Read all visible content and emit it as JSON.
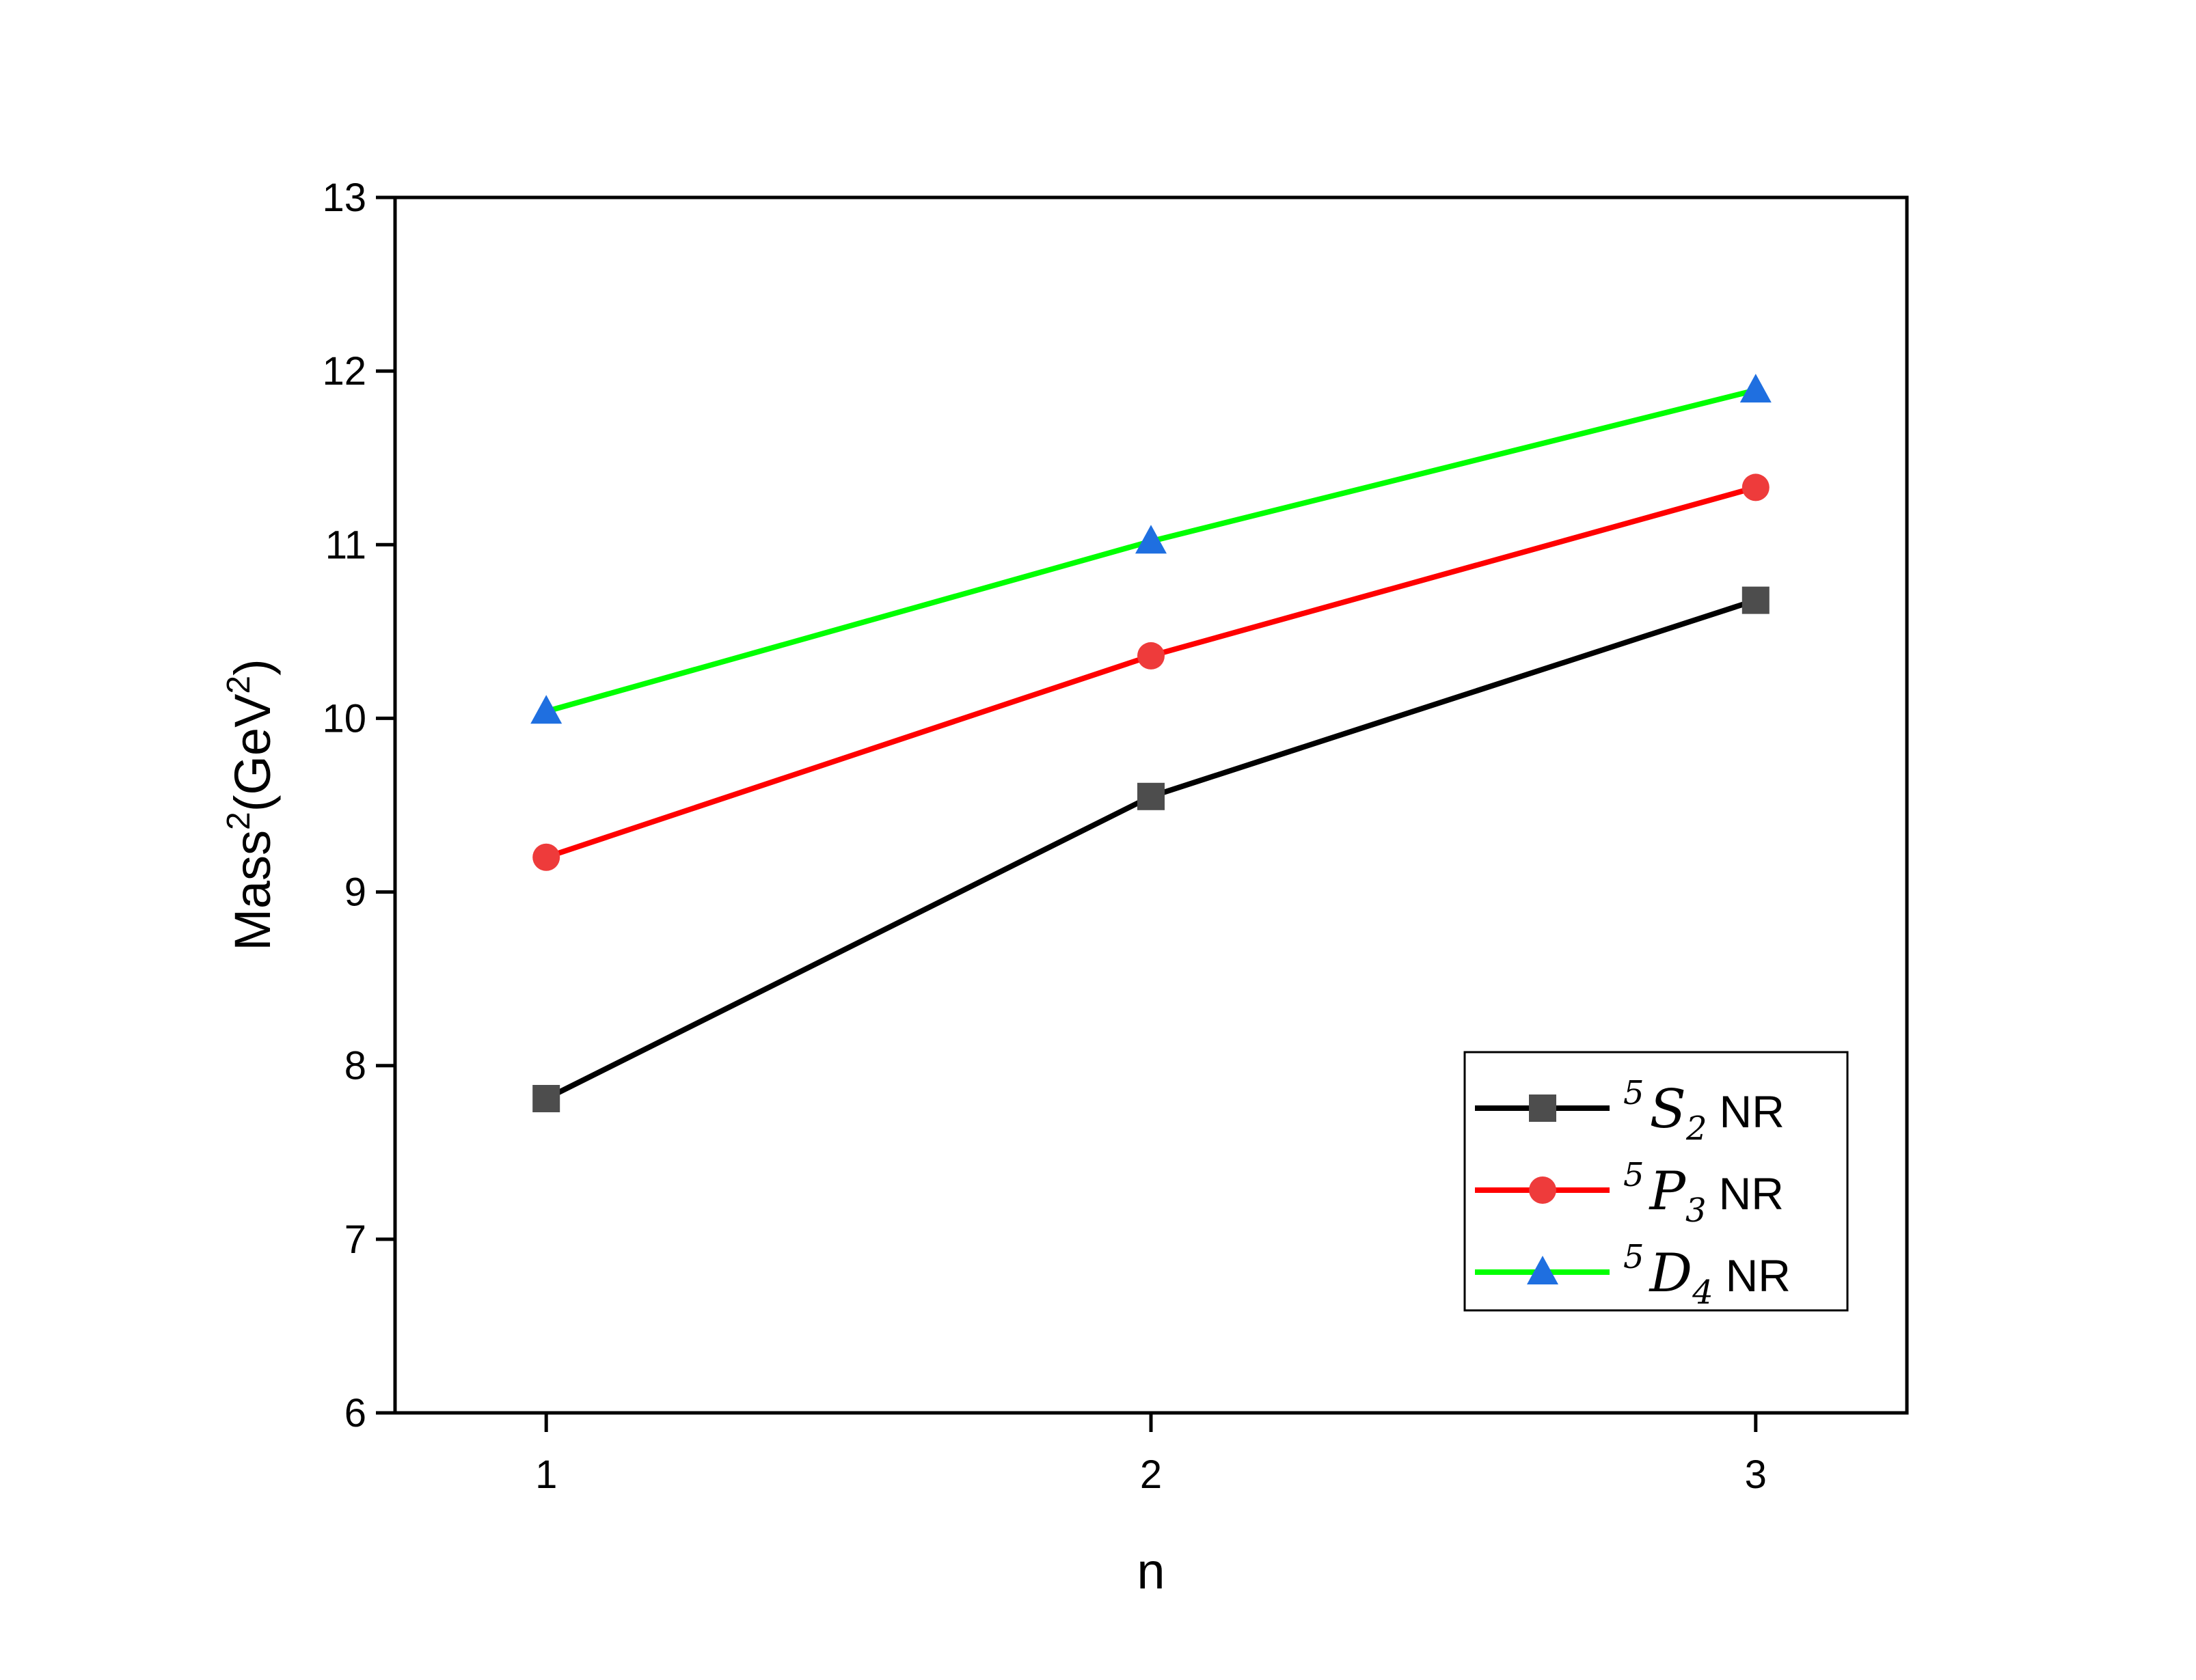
{
  "chart_data": {
    "type": "line",
    "title": "",
    "xlabel": "n",
    "ylabel": {
      "base": "Mass",
      "sup1": "2",
      "mid": "(GeV",
      "sup2": "2",
      "end": ")"
    },
    "x": [
      1,
      2,
      3
    ],
    "xlim": [
      0.75,
      3.25
    ],
    "ylim": [
      6,
      13
    ],
    "xticks": [
      "1",
      "2",
      "3"
    ],
    "yticks": [
      "6",
      "7",
      "8",
      "9",
      "10",
      "11",
      "12",
      "13"
    ],
    "legend_position": "bottom-right",
    "series": [
      {
        "name": "5S2 NR",
        "sup": "5",
        "letter": "S",
        "sub": "2",
        "suffix": "NR",
        "values": [
          7.81,
          9.55,
          10.68
        ],
        "line_color": "#000000",
        "marker_color": "#4d4d4d",
        "marker": "square"
      },
      {
        "name": "5P3 NR",
        "sup": "5",
        "letter": "P",
        "sub": "3",
        "suffix": "NR",
        "values": [
          9.2,
          10.36,
          11.33
        ],
        "line_color": "#ff0000",
        "marker_color": "#ee3b3b",
        "marker": "circle"
      },
      {
        "name": "5D4 NR",
        "sup": "5",
        "letter": "D",
        "sub": "4",
        "suffix": "NR",
        "values": [
          10.04,
          11.02,
          11.89
        ],
        "line_color": "#00ff00",
        "marker_color": "#1f6fe0",
        "marker": "triangle"
      }
    ]
  }
}
